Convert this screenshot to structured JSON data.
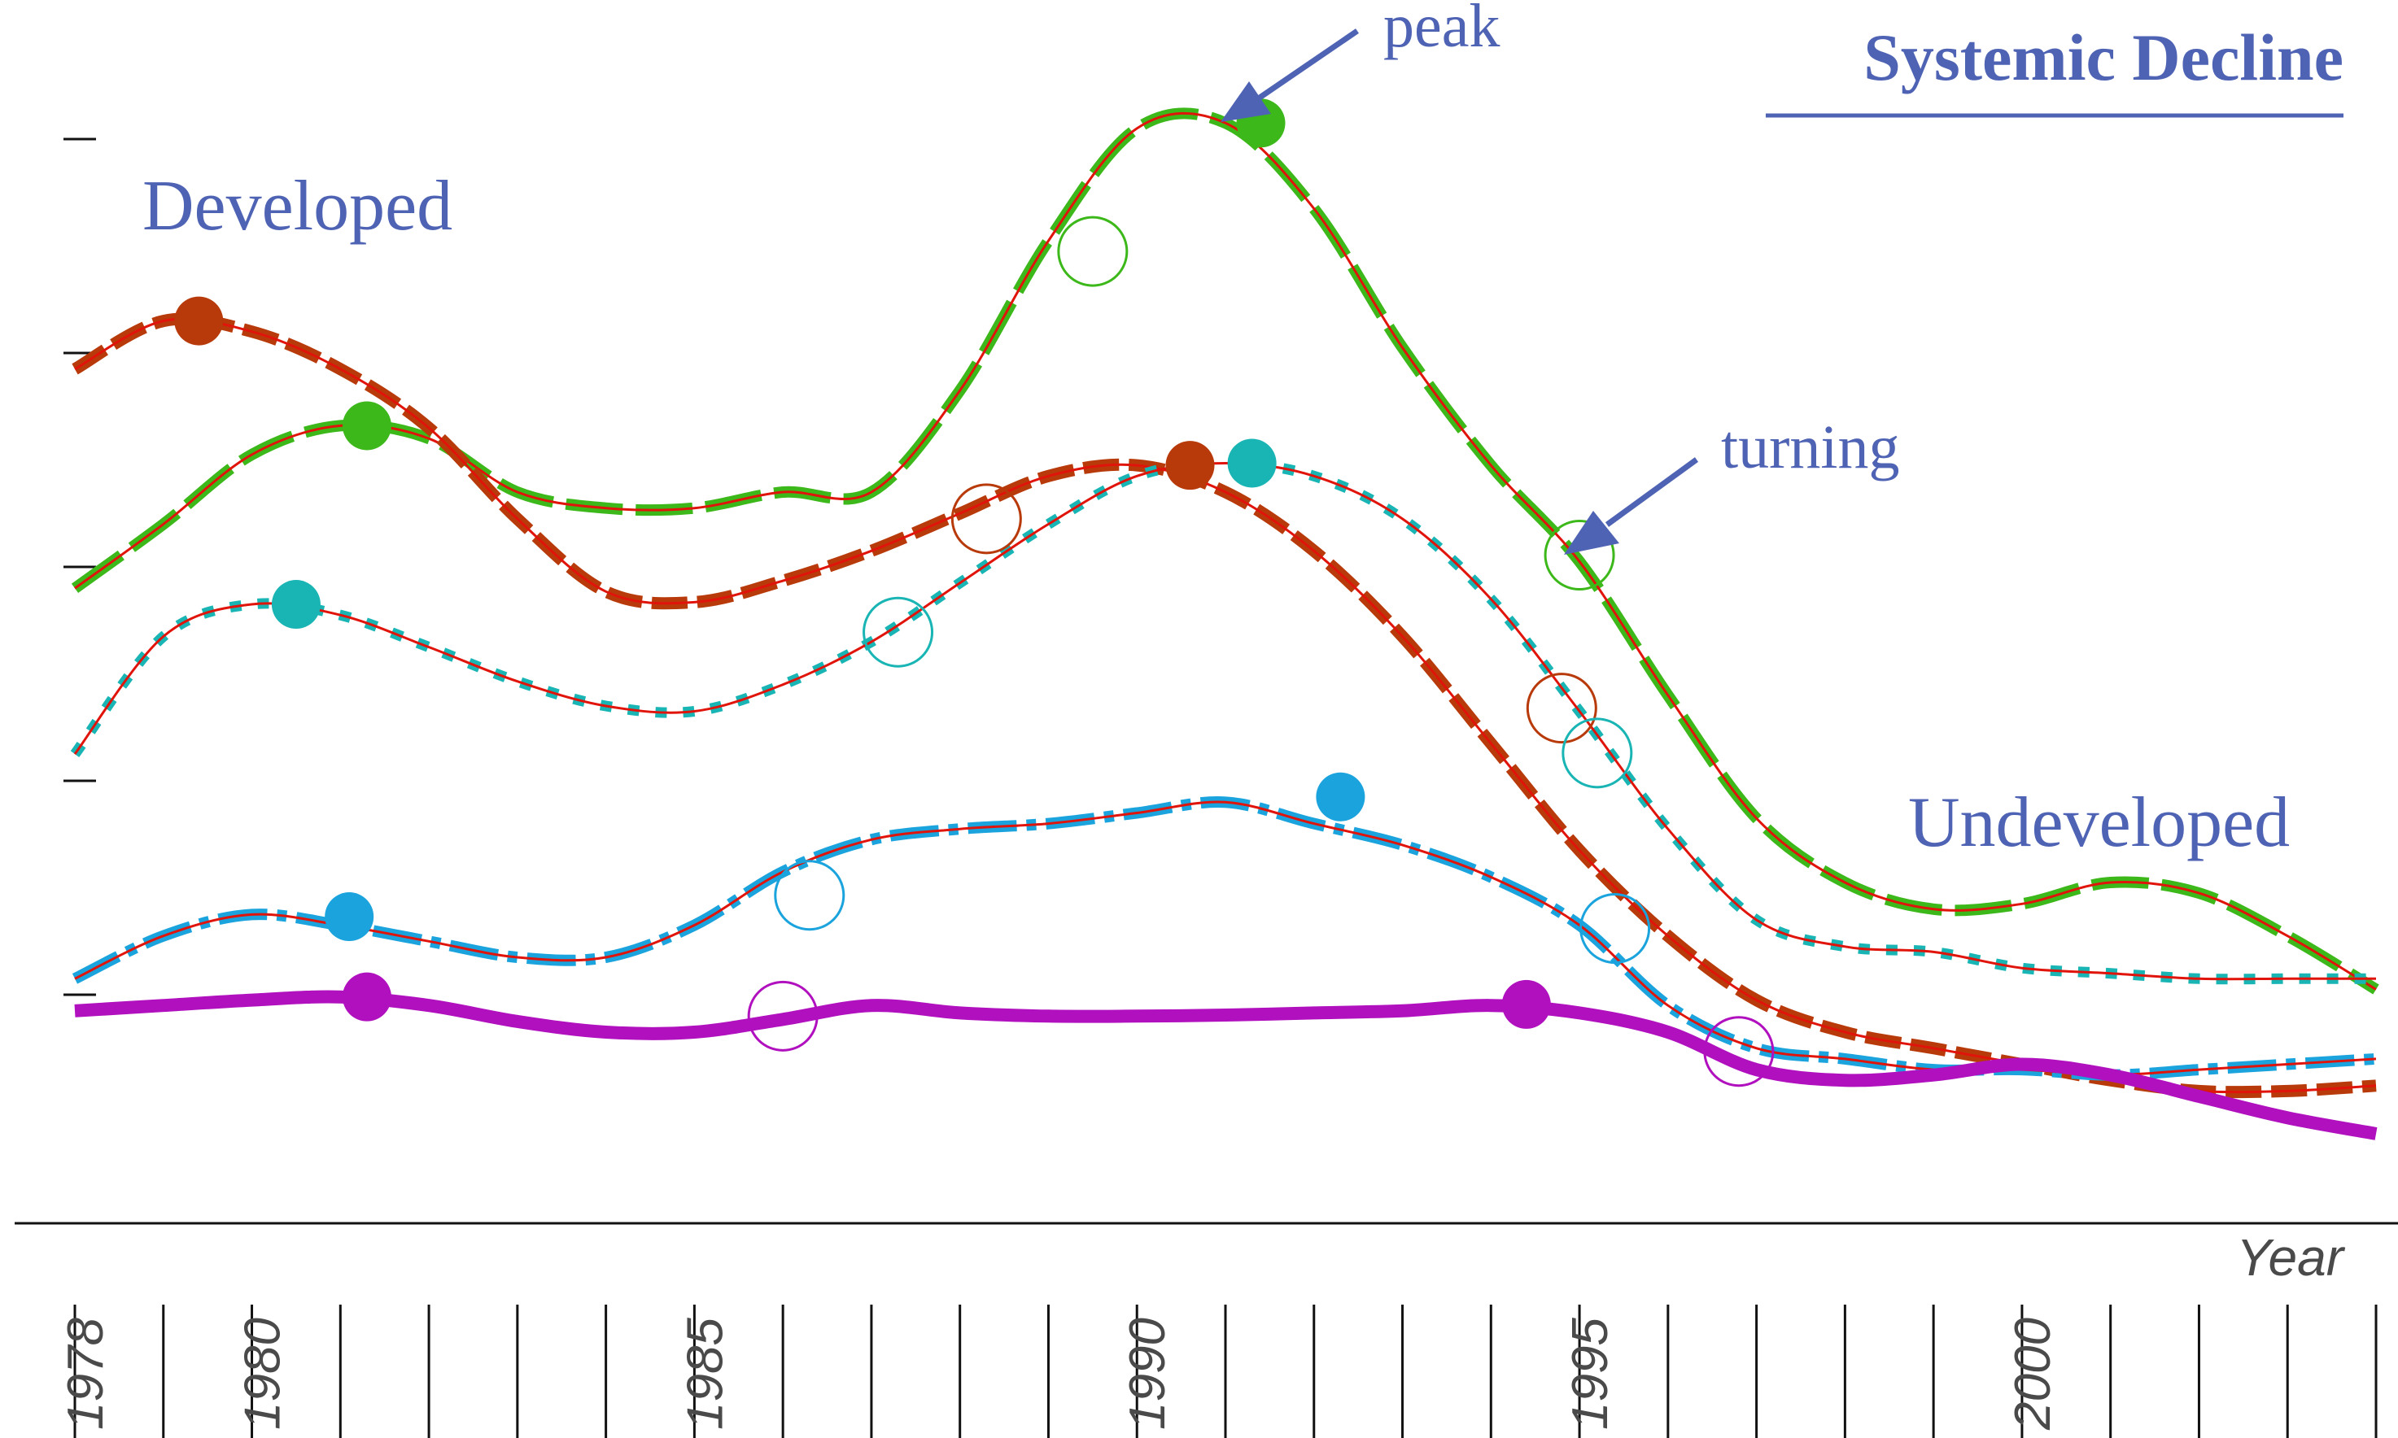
{
  "chart_data": {
    "type": "line",
    "title": "Systemic Decline",
    "xlabel": "Year",
    "ylabel": "",
    "xlim": [
      1978,
      2004
    ],
    "ylim": [
      0,
      10
    ],
    "x_ticks": [
      1978,
      1979,
      1980,
      1981,
      1982,
      1983,
      1984,
      1985,
      1986,
      1987,
      1988,
      1989,
      1990,
      1991,
      1992,
      1993,
      1994,
      1995,
      1996,
      1997,
      1998,
      1999,
      2000,
      2001,
      2002,
      2003,
      2004
    ],
    "x_tick_labels": [
      {
        "x": 1978,
        "label": "1978"
      },
      {
        "x": 1980,
        "label": "1980"
      },
      {
        "x": 1985,
        "label": "1985"
      },
      {
        "x": 1990,
        "label": "1990"
      },
      {
        "x": 1995,
        "label": "1995"
      },
      {
        "x": 2000,
        "label": "2000"
      }
    ],
    "y_ticks": [
      1.65,
      3.65,
      5.65,
      7.65,
      9.65
    ],
    "grid": false,
    "legend": "none",
    "annotations": [
      {
        "text": "Developed"
      },
      {
        "text": "Undeveloped"
      },
      {
        "text": "peak",
        "points_to": {
          "x": 1991.4,
          "y": 9.8
        }
      },
      {
        "text": "turning",
        "points_to": {
          "x": 1995.0,
          "y": 5.76
        }
      }
    ],
    "series": [
      {
        "style": "long-dash",
        "color": "#3cb81a",
        "x": [
          1978,
          1979,
          1980,
          1981,
          1982,
          1983,
          1984,
          1985,
          1986,
          1987,
          1988,
          1989,
          1990,
          1991,
          1992,
          1993,
          1994,
          1995,
          1996,
          1997,
          1998,
          1999,
          2000,
          2001,
          2002,
          2003,
          2004
        ],
        "y": [
          5.45,
          6.05,
          6.7,
          6.97,
          6.85,
          6.35,
          6.2,
          6.2,
          6.35,
          6.35,
          7.3,
          8.7,
          9.75,
          9.8,
          9.0,
          7.7,
          6.6,
          5.7,
          4.45,
          3.3,
          2.7,
          2.45,
          2.5,
          2.7,
          2.6,
          2.2,
          1.7
        ],
        "peaks": [
          {
            "x": 1981.3,
            "y": 6.97
          },
          {
            "x": 1991.4,
            "y": 9.8
          }
        ],
        "turning": [
          {
            "x": 1989.5,
            "y": 8.6
          },
          {
            "x": 1995.0,
            "y": 5.76
          }
        ]
      },
      {
        "style": "dash",
        "color": "#b83a0a",
        "x": [
          1978,
          1979,
          1980,
          1981,
          1982,
          1983,
          1984,
          1985,
          1986,
          1987,
          1988,
          1989,
          1990,
          1991,
          1992,
          1993,
          1994,
          1995,
          1996,
          1997,
          1998,
          1999,
          2000,
          2001,
          2002,
          2003,
          2004
        ],
        "y": [
          7.5,
          7.95,
          7.85,
          7.5,
          6.95,
          6.1,
          5.42,
          5.32,
          5.52,
          5.8,
          6.15,
          6.5,
          6.6,
          6.35,
          5.8,
          5.0,
          4.0,
          3.0,
          2.2,
          1.6,
          1.3,
          1.15,
          1.0,
          0.85,
          0.75,
          0.75,
          0.8
        ],
        "peaks": [
          {
            "x": 1979.4,
            "y": 7.95
          },
          {
            "x": 1990.6,
            "y": 6.6
          }
        ],
        "turning": [
          {
            "x": 1988.3,
            "y": 6.1
          },
          {
            "x": 1994.8,
            "y": 4.33
          }
        ]
      },
      {
        "style": "dot",
        "color": "#19b4b4",
        "x": [
          1978,
          1979,
          1980,
          1981,
          1982,
          1983,
          1984,
          1985,
          1986,
          1987,
          1988,
          1989,
          1990,
          1991,
          1992,
          1993,
          1994,
          1995,
          1996,
          1997,
          1998,
          1999,
          2000,
          2001,
          2002,
          2003,
          2004
        ],
        "y": [
          3.9,
          5.0,
          5.3,
          5.2,
          4.9,
          4.58,
          4.35,
          4.3,
          4.55,
          4.95,
          5.5,
          6.05,
          6.5,
          6.62,
          6.5,
          6.1,
          5.35,
          4.3,
          3.2,
          2.35,
          2.1,
          2.05,
          1.9,
          1.85,
          1.8,
          1.8,
          1.8
        ],
        "peaks": [
          {
            "x": 1980.5,
            "y": 5.3
          },
          {
            "x": 1991.3,
            "y": 6.62
          }
        ],
        "turning": [
          {
            "x": 1987.3,
            "y": 5.04
          },
          {
            "x": 1995.2,
            "y": 3.91
          }
        ]
      },
      {
        "style": "dash-dot",
        "color": "#1aa3dc",
        "x": [
          1978,
          1979,
          1980,
          1981,
          1982,
          1983,
          1984,
          1985,
          1986,
          1987,
          1988,
          1989,
          1990,
          1991,
          1992,
          1993,
          1994,
          1995,
          1996,
          1997,
          1998,
          1999,
          2000,
          2001,
          2002,
          2003,
          2004
        ],
        "y": [
          1.8,
          2.2,
          2.4,
          2.3,
          2.15,
          2.0,
          2.0,
          2.3,
          2.8,
          3.1,
          3.2,
          3.25,
          3.35,
          3.45,
          3.25,
          3.05,
          2.75,
          2.3,
          1.55,
          1.15,
          1.05,
          0.95,
          0.95,
          0.9,
          0.95,
          1.0,
          1.05
        ],
        "peaks": [
          {
            "x": 1981.1,
            "y": 2.38
          },
          {
            "x": 1992.3,
            "y": 3.5
          }
        ],
        "turning": [
          {
            "x": 1986.3,
            "y": 2.58
          },
          {
            "x": 1995.4,
            "y": 2.27
          }
        ]
      },
      {
        "style": "solid",
        "color": "#b010be",
        "x": [
          1978,
          1979,
          1980,
          1981,
          1982,
          1983,
          1984,
          1985,
          1986,
          1987,
          1988,
          1989,
          1990,
          1991,
          1992,
          1993,
          1994,
          1995,
          1996,
          1997,
          1998,
          1999,
          2000,
          2001,
          2002,
          2003,
          2004
        ],
        "y": [
          1.5,
          1.55,
          1.6,
          1.63,
          1.55,
          1.4,
          1.3,
          1.3,
          1.42,
          1.55,
          1.48,
          1.45,
          1.45,
          1.46,
          1.48,
          1.5,
          1.55,
          1.48,
          1.3,
          0.95,
          0.85,
          0.9,
          1.0,
          0.9,
          0.7,
          0.5,
          0.35
        ],
        "peaks": [
          {
            "x": 1981.3,
            "y": 1.63
          },
          {
            "x": 1994.4,
            "y": 1.56
          }
        ],
        "turning": [
          {
            "x": 1986.0,
            "y": 1.45
          },
          {
            "x": 1996.8,
            "y": 1.12
          }
        ]
      }
    ]
  }
}
